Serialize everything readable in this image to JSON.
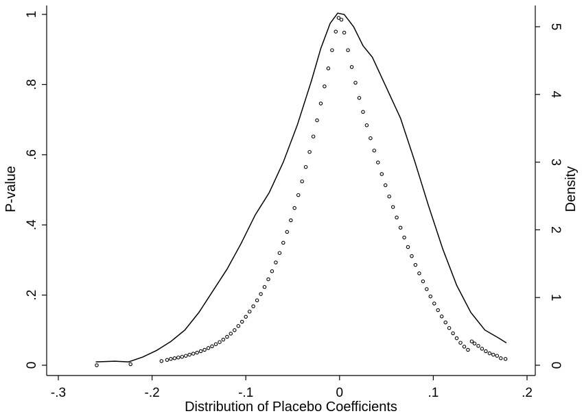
{
  "chart_data": {
    "type": "scatter",
    "title": "",
    "xlabel": "Distribution of Placebo Coefficients",
    "ylabel_left": "P-value",
    "ylabel_right": "Density",
    "xlim": [
      -0.31,
      0.2
    ],
    "ylim_left": [
      0,
      1
    ],
    "ylim_right": [
      0,
      5.2
    ],
    "x_ticks": [
      {
        "value": -0.3,
        "label": "-.3"
      },
      {
        "value": -0.2,
        "label": "-.2"
      },
      {
        "value": -0.1,
        "label": "-.1"
      },
      {
        "value": 0,
        "label": "0"
      },
      {
        "value": 0.1,
        "label": ".1"
      },
      {
        "value": 0.2,
        "label": ".2"
      }
    ],
    "y_ticks_left": [
      {
        "value": 0,
        "label": "0"
      },
      {
        "value": 0.2,
        "label": ".2"
      },
      {
        "value": 0.4,
        "label": ".4"
      },
      {
        "value": 0.6,
        "label": ".6"
      },
      {
        "value": 0.8,
        "label": ".8"
      },
      {
        "value": 1,
        "label": "1"
      }
    ],
    "y_ticks_right": [
      {
        "value": 0,
        "label": "0"
      },
      {
        "value": 1,
        "label": "1"
      },
      {
        "value": 2,
        "label": "2"
      },
      {
        "value": 3,
        "label": "3"
      },
      {
        "value": 4,
        "label": "4"
      },
      {
        "value": 5,
        "label": "5"
      }
    ],
    "grid": false,
    "series": [
      {
        "kind": "scatter",
        "axis": "left",
        "marker": "hollow-circle",
        "points": [
          [
            -0.259,
            0.0
          ],
          [
            -0.223,
            0.003
          ],
          [
            -0.19,
            0.012
          ],
          [
            -0.184,
            0.015
          ],
          [
            -0.18,
            0.018
          ],
          [
            -0.176,
            0.02
          ],
          [
            -0.172,
            0.022
          ],
          [
            -0.168,
            0.024
          ],
          [
            -0.164,
            0.027
          ],
          [
            -0.16,
            0.03
          ],
          [
            -0.156,
            0.033
          ],
          [
            -0.152,
            0.036
          ],
          [
            -0.148,
            0.04
          ],
          [
            -0.144,
            0.044
          ],
          [
            -0.14,
            0.049
          ],
          [
            -0.136,
            0.054
          ],
          [
            -0.132,
            0.06
          ],
          [
            -0.128,
            0.066
          ],
          [
            -0.124,
            0.073
          ],
          [
            -0.12,
            0.081
          ],
          [
            -0.116,
            0.09
          ],
          [
            -0.112,
            0.1
          ],
          [
            -0.108,
            0.112
          ],
          [
            -0.104,
            0.124
          ],
          [
            -0.1,
            0.138
          ],
          [
            -0.096,
            0.153
          ],
          [
            -0.092,
            0.168
          ],
          [
            -0.088,
            0.185
          ],
          [
            -0.084,
            0.203
          ],
          [
            -0.08,
            0.223
          ],
          [
            -0.076,
            0.245
          ],
          [
            -0.072,
            0.268
          ],
          [
            -0.068,
            0.293
          ],
          [
            -0.064,
            0.32
          ],
          [
            -0.06,
            0.349
          ],
          [
            -0.056,
            0.38
          ],
          [
            -0.052,
            0.413
          ],
          [
            -0.048,
            0.448
          ],
          [
            -0.044,
            0.485
          ],
          [
            -0.04,
            0.524
          ],
          [
            -0.036,
            0.565
          ],
          [
            -0.032,
            0.608
          ],
          [
            -0.028,
            0.652
          ],
          [
            -0.024,
            0.698
          ],
          [
            -0.02,
            0.746
          ],
          [
            -0.016,
            0.795
          ],
          [
            -0.012,
            0.846
          ],
          [
            -0.008,
            0.898
          ],
          [
            -0.004,
            0.951
          ],
          [
            -0.001,
            0.99
          ],
          [
            0.002,
            0.985
          ],
          [
            0.005,
            0.948
          ],
          [
            0.009,
            0.898
          ],
          [
            0.013,
            0.85
          ],
          [
            0.017,
            0.805
          ],
          [
            0.021,
            0.762
          ],
          [
            0.025,
            0.722
          ],
          [
            0.029,
            0.684
          ],
          [
            0.033,
            0.647
          ],
          [
            0.037,
            0.612
          ],
          [
            0.041,
            0.578
          ],
          [
            0.045,
            0.545
          ],
          [
            0.049,
            0.513
          ],
          [
            0.053,
            0.481
          ],
          [
            0.057,
            0.451
          ],
          [
            0.061,
            0.421
          ],
          [
            0.065,
            0.392
          ],
          [
            0.069,
            0.364
          ],
          [
            0.073,
            0.337
          ],
          [
            0.077,
            0.311
          ],
          [
            0.081,
            0.286
          ],
          [
            0.085,
            0.262
          ],
          [
            0.089,
            0.239
          ],
          [
            0.093,
            0.217
          ],
          [
            0.097,
            0.196
          ],
          [
            0.101,
            0.176
          ],
          [
            0.105,
            0.157
          ],
          [
            0.109,
            0.139
          ],
          [
            0.113,
            0.122
          ],
          [
            0.117,
            0.106
          ],
          [
            0.121,
            0.091
          ],
          [
            0.125,
            0.077
          ],
          [
            0.129,
            0.064
          ],
          [
            0.133,
            0.053
          ],
          [
            0.137,
            0.044
          ],
          [
            0.141,
            0.068
          ],
          [
            0.144,
            0.062
          ],
          [
            0.148,
            0.055
          ],
          [
            0.152,
            0.047
          ],
          [
            0.156,
            0.04
          ],
          [
            0.16,
            0.034
          ],
          [
            0.164,
            0.03
          ],
          [
            0.168,
            0.027
          ],
          [
            0.172,
            0.02
          ],
          [
            0.177,
            0.018
          ]
        ]
      },
      {
        "kind": "line",
        "axis": "right",
        "name": "",
        "points": [
          [
            -0.26,
            0.05
          ],
          [
            -0.24,
            0.06
          ],
          [
            -0.225,
            0.05
          ],
          [
            -0.21,
            0.12
          ],
          [
            -0.195,
            0.22
          ],
          [
            -0.18,
            0.35
          ],
          [
            -0.165,
            0.52
          ],
          [
            -0.15,
            0.78
          ],
          [
            -0.135,
            1.1
          ],
          [
            -0.12,
            1.42
          ],
          [
            -0.105,
            1.8
          ],
          [
            -0.09,
            2.22
          ],
          [
            -0.075,
            2.55
          ],
          [
            -0.06,
            3.0
          ],
          [
            -0.045,
            3.55
          ],
          [
            -0.03,
            4.2
          ],
          [
            -0.02,
            4.68
          ],
          [
            -0.01,
            5.05
          ],
          [
            -0.002,
            5.2
          ],
          [
            0.005,
            5.18
          ],
          [
            0.015,
            5.0
          ],
          [
            0.025,
            4.72
          ],
          [
            0.035,
            4.55
          ],
          [
            0.05,
            4.1
          ],
          [
            0.065,
            3.65
          ],
          [
            0.08,
            3.02
          ],
          [
            0.095,
            2.35
          ],
          [
            0.11,
            1.72
          ],
          [
            0.125,
            1.18
          ],
          [
            0.14,
            0.78
          ],
          [
            0.155,
            0.52
          ],
          [
            0.17,
            0.4
          ],
          [
            0.178,
            0.33
          ]
        ]
      }
    ]
  }
}
